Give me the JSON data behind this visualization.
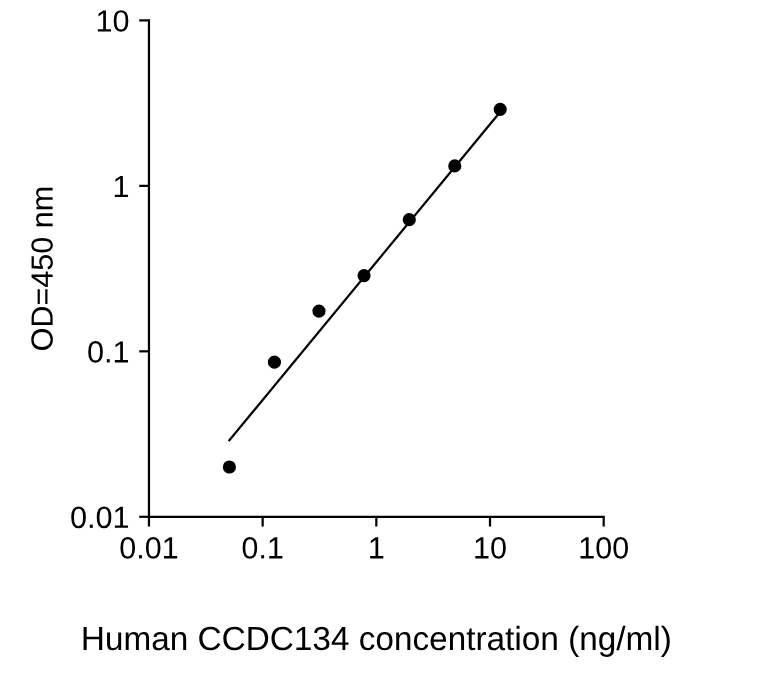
{
  "chart_data": {
    "type": "scatter",
    "xlabel": "Human CCDC134 concentration (ng/ml)",
    "ylabel": "OD=450 nm",
    "log": "xy",
    "series": [
      {
        "color": "#000000",
        "marker": "circle",
        "x": [
          0.051,
          0.127,
          0.313,
          0.78,
          1.95,
          4.9,
          12.3
        ],
        "values": [
          0.02,
          0.086,
          0.175,
          0.287,
          0.625,
          1.32,
          2.9
        ]
      },
      {
        "type": "line",
        "color": "#000000",
        "marker": "none",
        "line_style": "solid",
        "x": [
          0.051,
          12.3
        ],
        "values": [
          0.029,
          2.8
        ]
      }
    ],
    "xlim": [
      0.01,
      100
    ],
    "ylim": [
      0.01,
      10
    ],
    "xticks": [
      0.01,
      0.1,
      1,
      10,
      100
    ],
    "yticks": [
      0.01,
      0.1,
      1,
      10
    ],
    "grid": false,
    "legend": false
  }
}
